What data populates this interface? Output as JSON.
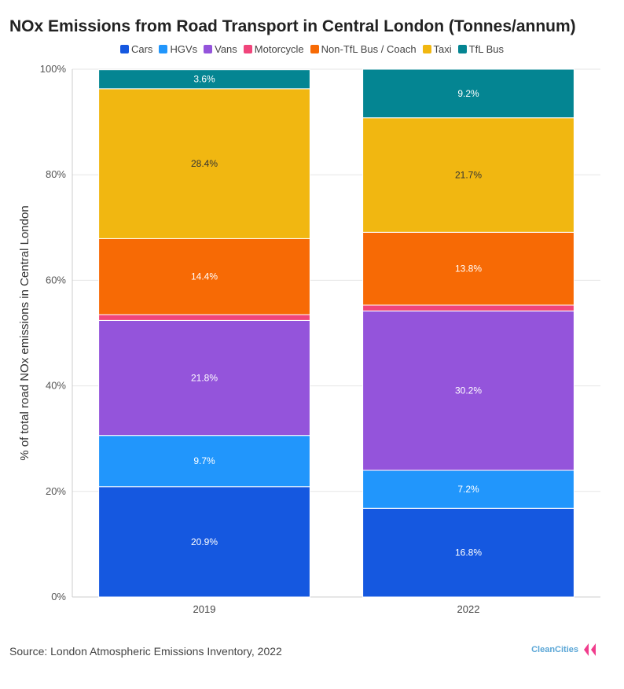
{
  "title": "NOx Emissions from Road Transport in Central London (Tonnes/annum)",
  "source": "Source: London Atmospheric Emissions Inventory, 2022",
  "logo_text": "CleanCities",
  "chart_data": {
    "type": "bar",
    "stacked": true,
    "categories": [
      "2019",
      "2022"
    ],
    "ylabel": "% of total road NOx emissions in Central London",
    "ylim": [
      0,
      100
    ],
    "yticks": [
      0,
      20,
      40,
      60,
      80,
      100
    ],
    "ytick_labels": [
      "0%",
      "20%",
      "40%",
      "60%",
      "80%",
      "100%"
    ],
    "grid": true,
    "legend": "top",
    "series": [
      {
        "name": "Cars",
        "color": "#1558e0",
        "values": [
          20.9,
          16.8
        ],
        "labels": [
          "20.9%",
          "16.8%"
        ]
      },
      {
        "name": "HGVs",
        "color": "#2196fc",
        "values": [
          9.7,
          7.2
        ],
        "labels": [
          "9.7%",
          "7.2%"
        ]
      },
      {
        "name": "Vans",
        "color": "#9454db",
        "values": [
          21.8,
          30.2
        ],
        "labels": [
          "21.8%",
          "30.2%"
        ]
      },
      {
        "name": "Motorcycle",
        "color": "#f0457b",
        "values": [
          1.1,
          1.1
        ],
        "labels": [
          "",
          ""
        ]
      },
      {
        "name": "Non-TfL Bus / Coach",
        "color": "#f76a05",
        "values": [
          14.4,
          13.8
        ],
        "labels": [
          "14.4%",
          "13.8%"
        ]
      },
      {
        "name": "Taxi",
        "color": "#f1b711",
        "values": [
          28.4,
          21.7
        ],
        "labels": [
          "28.4%",
          "21.7%"
        ]
      },
      {
        "name": "TfL Bus",
        "color": "#048592",
        "values": [
          3.6,
          9.2
        ],
        "labels": [
          "3.6%",
          "9.2%"
        ]
      }
    ]
  }
}
